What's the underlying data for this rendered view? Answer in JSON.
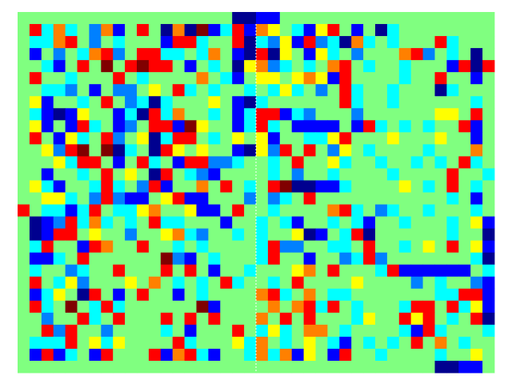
{
  "chart_data": {
    "type": "heatmap",
    "zlim": [
      0,
      8
    ],
    "colormap": [
      "#00008f",
      "#0000ff",
      "#0080ff",
      "#00ffff",
      "#80ff80",
      "#ffff00",
      "#ff8000",
      "#ff0000",
      "#800000"
    ],
    "values": [
      [
        4,
        4,
        4,
        4,
        4,
        4,
        4,
        4,
        4,
        4,
        4,
        4,
        4,
        4,
        4,
        4,
        4,
        4,
        0,
        0,
        1,
        1,
        4,
        4,
        4,
        4,
        4,
        4,
        4,
        4,
        4,
        4,
        4,
        4,
        4,
        4,
        4,
        4,
        4,
        4
      ],
      [
        4,
        7,
        3,
        6,
        3,
        4,
        2,
        6,
        1,
        4,
        7,
        4,
        0,
        6,
        0,
        8,
        1,
        3,
        7,
        1,
        6,
        5,
        4,
        3,
        1,
        5,
        7,
        4,
        1,
        4,
        0,
        3,
        4,
        4,
        4,
        4,
        4,
        4,
        4,
        4
      ],
      [
        4,
        3,
        3,
        6,
        7,
        4,
        2,
        4,
        3,
        4,
        4,
        4,
        1,
        7,
        7,
        3,
        4,
        4,
        7,
        0,
        3,
        2,
        5,
        1,
        7,
        2,
        3,
        0,
        6,
        3,
        4,
        3,
        4,
        4,
        4,
        7,
        3,
        4,
        4,
        4
      ],
      [
        4,
        1,
        4,
        2,
        4,
        3,
        6,
        7,
        2,
        4,
        7,
        7,
        3,
        3,
        4,
        3,
        6,
        4,
        1,
        0,
        7,
        0,
        5,
        4,
        1,
        5,
        3,
        4,
        2,
        4,
        4,
        4,
        6,
        7,
        2,
        4,
        3,
        4,
        0,
        4
      ],
      [
        4,
        4,
        3,
        1,
        4,
        7,
        4,
        8,
        4,
        7,
        8,
        7,
        7,
        4,
        1,
        4,
        3,
        4,
        0,
        5,
        6,
        2,
        3,
        4,
        3,
        4,
        6,
        7,
        4,
        3,
        4,
        4,
        3,
        4,
        4,
        4,
        1,
        7,
        0,
        7
      ],
      [
        4,
        7,
        4,
        4,
        3,
        4,
        4,
        4,
        7,
        4,
        3,
        4,
        4,
        4,
        4,
        6,
        4,
        3,
        1,
        4,
        5,
        5,
        4,
        5,
        6,
        5,
        1,
        7,
        4,
        4,
        4,
        4,
        3,
        4,
        4,
        7,
        4,
        4,
        1,
        4
      ],
      [
        4,
        4,
        3,
        3,
        2,
        4,
        1,
        4,
        2,
        2,
        4,
        5,
        4,
        7,
        3,
        4,
        3,
        4,
        4,
        3,
        4,
        3,
        5,
        3,
        4,
        2,
        4,
        7,
        3,
        4,
        4,
        3,
        4,
        4,
        4,
        0,
        3,
        4,
        4,
        4
      ],
      [
        4,
        5,
        1,
        4,
        4,
        3,
        4,
        7,
        4,
        2,
        3,
        0,
        3,
        4,
        4,
        4,
        5,
        4,
        1,
        0,
        3,
        4,
        4,
        4,
        4,
        4,
        4,
        7,
        3,
        4,
        4,
        3,
        4,
        4,
        4,
        4,
        4,
        4,
        3,
        4
      ],
      [
        4,
        3,
        1,
        0,
        1,
        5,
        4,
        4,
        1,
        3,
        0,
        7,
        3,
        6,
        4,
        4,
        3,
        4,
        1,
        3,
        7,
        7,
        1,
        3,
        2,
        4,
        4,
        4,
        2,
        4,
        4,
        4,
        4,
        4,
        4,
        5,
        5,
        4,
        7,
        4
      ],
      [
        4,
        5,
        1,
        4,
        1,
        7,
        3,
        4,
        1,
        2,
        4,
        7,
        7,
        1,
        8,
        5,
        4,
        4,
        1,
        3,
        7,
        3,
        4,
        1,
        1,
        1,
        1,
        4,
        1,
        7,
        3,
        4,
        3,
        4,
        3,
        4,
        4,
        7,
        1,
        4
      ],
      [
        4,
        7,
        4,
        1,
        5,
        3,
        4,
        7,
        2,
        4,
        5,
        0,
        3,
        7,
        7,
        4,
        3,
        4,
        5,
        4,
        5,
        1,
        4,
        4,
        3,
        3,
        5,
        7,
        4,
        4,
        4,
        5,
        4,
        4,
        4,
        5,
        4,
        4,
        1,
        4
      ],
      [
        4,
        4,
        5,
        2,
        7,
        8,
        4,
        8,
        0,
        3,
        4,
        0,
        7,
        5,
        4,
        5,
        4,
        4,
        1,
        0,
        5,
        2,
        7,
        4,
        7,
        4,
        2,
        5,
        4,
        3,
        4,
        4,
        4,
        4,
        3,
        4,
        4,
        4,
        6,
        4
      ],
      [
        4,
        4,
        4,
        5,
        3,
        7,
        7,
        4,
        1,
        4,
        7,
        3,
        4,
        1,
        7,
        7,
        2,
        2,
        3,
        4,
        4,
        3,
        4,
        7,
        4,
        4,
        5,
        3,
        4,
        4,
        3,
        4,
        4,
        3,
        4,
        3,
        4,
        7,
        3,
        4
      ],
      [
        4,
        4,
        1,
        4,
        4,
        3,
        4,
        7,
        4,
        5,
        4,
        0,
        7,
        4,
        3,
        2,
        1,
        4,
        4,
        4,
        4,
        3,
        4,
        2,
        4,
        4,
        3,
        4,
        4,
        4,
        4,
        3,
        4,
        4,
        4,
        4,
        7,
        4,
        4,
        3
      ],
      [
        4,
        5,
        3,
        1,
        4,
        4,
        3,
        7,
        3,
        4,
        2,
        7,
        1,
        4,
        4,
        6,
        4,
        7,
        4,
        3,
        4,
        7,
        8,
        0,
        0,
        1,
        1,
        3,
        4,
        4,
        4,
        4,
        5,
        4,
        3,
        4,
        7,
        4,
        3,
        4
      ],
      [
        4,
        4,
        5,
        5,
        3,
        4,
        2,
        7,
        2,
        1,
        1,
        4,
        5,
        7,
        1,
        1,
        4,
        4,
        4,
        2,
        4,
        2,
        3,
        4,
        7,
        4,
        4,
        4,
        4,
        4,
        4,
        4,
        4,
        4,
        4,
        4,
        3,
        4,
        1,
        4
      ],
      [
        7,
        4,
        3,
        3,
        1,
        3,
        7,
        4,
        3,
        3,
        5,
        6,
        4,
        4,
        5,
        1,
        1,
        4,
        7,
        4,
        4,
        3,
        4,
        4,
        4,
        4,
        6,
        7,
        3,
        4,
        2,
        3,
        4,
        4,
        3,
        4,
        4,
        4,
        3,
        4
      ],
      [
        4,
        0,
        1,
        2,
        7,
        3,
        6,
        3,
        4,
        3,
        4,
        7,
        3,
        3,
        4,
        4,
        4,
        1,
        4,
        4,
        3,
        4,
        3,
        1,
        4,
        4,
        3,
        4,
        3,
        1,
        4,
        4,
        3,
        4,
        4,
        4,
        3,
        4,
        5,
        1
      ],
      [
        4,
        0,
        1,
        7,
        7,
        4,
        5,
        4,
        4,
        2,
        4,
        4,
        5,
        6,
        3,
        2,
        4,
        4,
        3,
        4,
        3,
        4,
        4,
        5,
        0,
        1,
        4,
        3,
        7,
        0,
        4,
        4,
        4,
        4,
        4,
        4,
        3,
        4,
        4,
        0
      ],
      [
        4,
        3,
        7,
        4,
        4,
        1,
        7,
        6,
        4,
        4,
        7,
        4,
        4,
        3,
        4,
        3,
        4,
        4,
        4,
        4,
        3,
        7,
        2,
        2,
        4,
        4,
        3,
        3,
        4,
        7,
        4,
        4,
        3,
        4,
        5,
        4,
        7,
        4,
        5,
        1
      ],
      [
        4,
        1,
        1,
        3,
        4,
        7,
        4,
        4,
        4,
        4,
        4,
        4,
        8,
        2,
        1,
        4,
        3,
        4,
        4,
        4,
        3,
        7,
        4,
        4,
        1,
        4,
        4,
        2,
        3,
        7,
        2,
        4,
        4,
        4,
        4,
        4,
        4,
        4,
        3,
        0
      ],
      [
        4,
        3,
        4,
        4,
        2,
        3,
        4,
        4,
        7,
        4,
        4,
        4,
        7,
        4,
        7,
        4,
        1,
        4,
        4,
        3,
        4,
        4,
        4,
        5,
        6,
        4,
        7,
        4,
        4,
        4,
        3,
        7,
        1,
        1,
        1,
        1,
        1,
        1,
        4,
        3
      ],
      [
        4,
        7,
        4,
        3,
        5,
        2,
        4,
        4,
        4,
        5,
        4,
        6,
        4,
        3,
        4,
        3,
        4,
        7,
        3,
        4,
        4,
        3,
        4,
        7,
        4,
        4,
        4,
        4,
        5,
        4,
        4,
        4,
        4,
        2,
        4,
        3,
        4,
        4,
        2,
        1
      ],
      [
        4,
        1,
        3,
        5,
        4,
        0,
        7,
        4,
        1,
        4,
        7,
        4,
        4,
        1,
        4,
        3,
        4,
        4,
        4,
        4,
        6,
        7,
        3,
        4,
        6,
        4,
        3,
        3,
        4,
        4,
        4,
        4,
        4,
        4,
        4,
        3,
        3,
        7,
        7,
        1
      ],
      [
        4,
        7,
        3,
        4,
        8,
        4,
        3,
        7,
        3,
        4,
        4,
        4,
        4,
        4,
        4,
        8,
        1,
        4,
        4,
        4,
        4,
        6,
        4,
        6,
        7,
        3,
        7,
        4,
        3,
        4,
        4,
        4,
        3,
        7,
        7,
        4,
        7,
        3,
        5,
        1
      ],
      [
        4,
        4,
        2,
        4,
        4,
        7,
        3,
        4,
        7,
        4,
        4,
        4,
        7,
        4,
        7,
        4,
        7,
        4,
        4,
        4,
        6,
        4,
        7,
        4,
        7,
        4,
        4,
        4,
        3,
        5,
        4,
        4,
        7,
        5,
        7,
        4,
        3,
        4,
        7,
        0
      ],
      [
        4,
        4,
        7,
        2,
        7,
        4,
        4,
        2,
        4,
        4,
        4,
        4,
        3,
        4,
        1,
        4,
        4,
        4,
        7,
        4,
        3,
        5,
        3,
        4,
        6,
        6,
        4,
        3,
        4,
        4,
        4,
        4,
        3,
        1,
        7,
        3,
        4,
        4,
        4,
        3
      ],
      [
        4,
        3,
        3,
        3,
        7,
        4,
        5,
        3,
        5,
        4,
        4,
        4,
        4,
        7,
        3,
        4,
        4,
        4,
        5,
        3,
        6,
        4,
        3,
        4,
        5,
        4,
        3,
        1,
        4,
        3,
        4,
        3,
        4,
        7,
        4,
        6,
        4,
        3,
        4,
        4
      ],
      [
        4,
        1,
        7,
        1,
        3,
        4,
        1,
        7,
        4,
        4,
        4,
        7,
        1,
        6,
        7,
        3,
        1,
        4,
        4,
        3,
        6,
        3,
        6,
        1,
        5,
        4,
        1,
        7,
        4,
        4,
        3,
        4,
        4,
        4,
        4,
        3,
        4,
        4,
        5,
        4
      ],
      [
        4,
        4,
        4,
        4,
        4,
        4,
        4,
        4,
        4,
        4,
        4,
        4,
        4,
        4,
        4,
        4,
        4,
        4,
        4,
        4,
        4,
        4,
        4,
        4,
        4,
        4,
        4,
        4,
        4,
        4,
        4,
        4,
        4,
        4,
        4,
        0,
        0,
        1,
        1,
        4
      ]
    ]
  }
}
